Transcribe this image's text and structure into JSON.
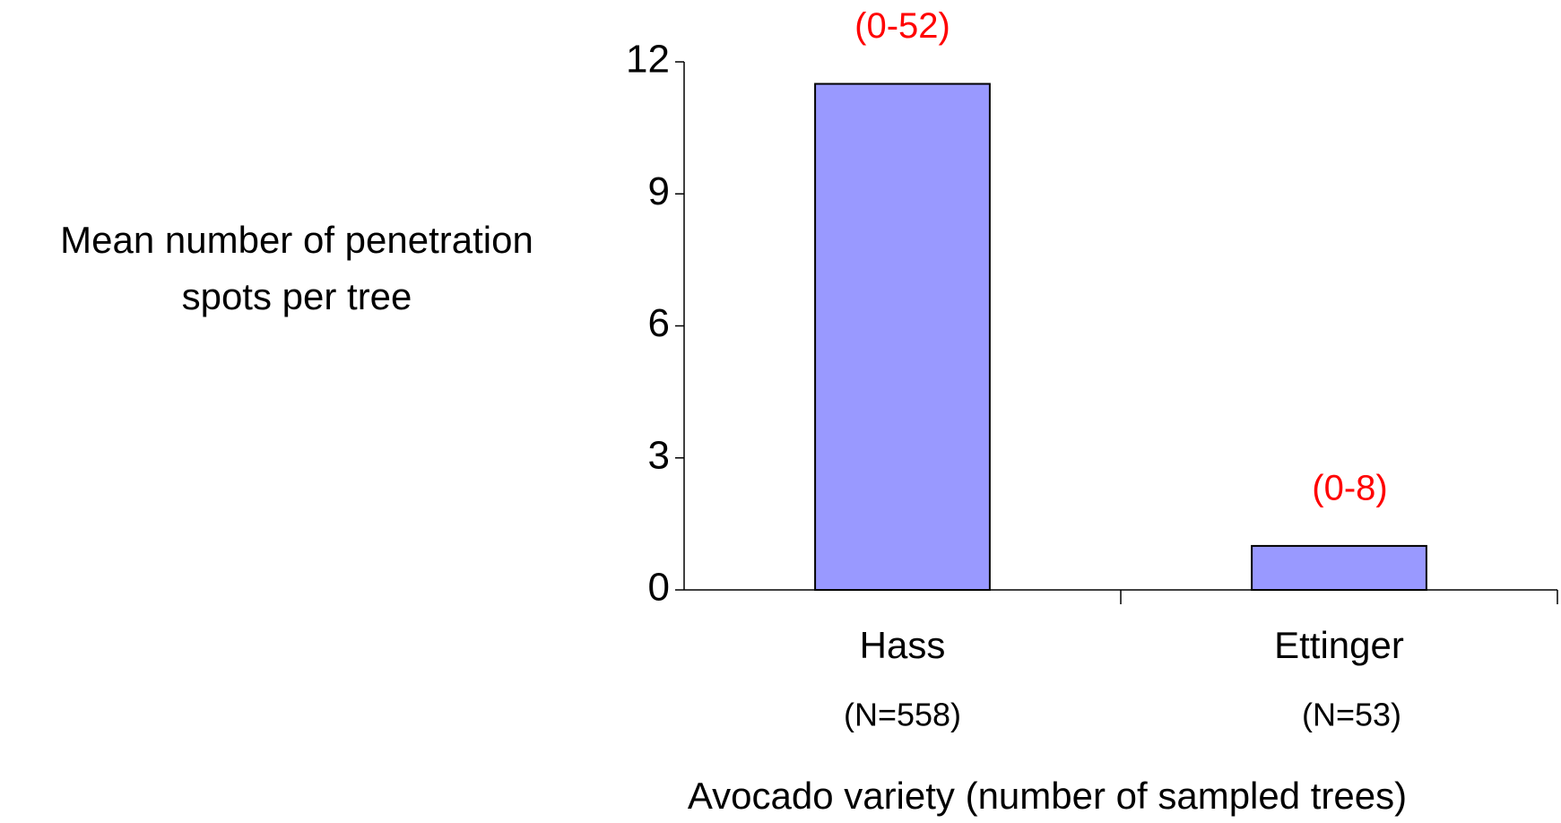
{
  "chart_data": {
    "type": "bar",
    "ylabel": [
      "Mean number of penetration",
      "spots  per tree"
    ],
    "xlabel": "Avocado variety (number of sampled trees)",
    "categories": [
      "Hass",
      "Ettinger"
    ],
    "sample_sizes": [
      "(N=558)",
      "(N=53)"
    ],
    "annotations": [
      "(0-52)",
      "(0-8)"
    ],
    "values": [
      11.5,
      1.0
    ],
    "color": "#9999ff",
    "annotation_color": "#ff0000",
    "ylim": [
      0,
      12
    ],
    "yticks": [
      0,
      3,
      6,
      9,
      12
    ],
    "grid": false
  }
}
